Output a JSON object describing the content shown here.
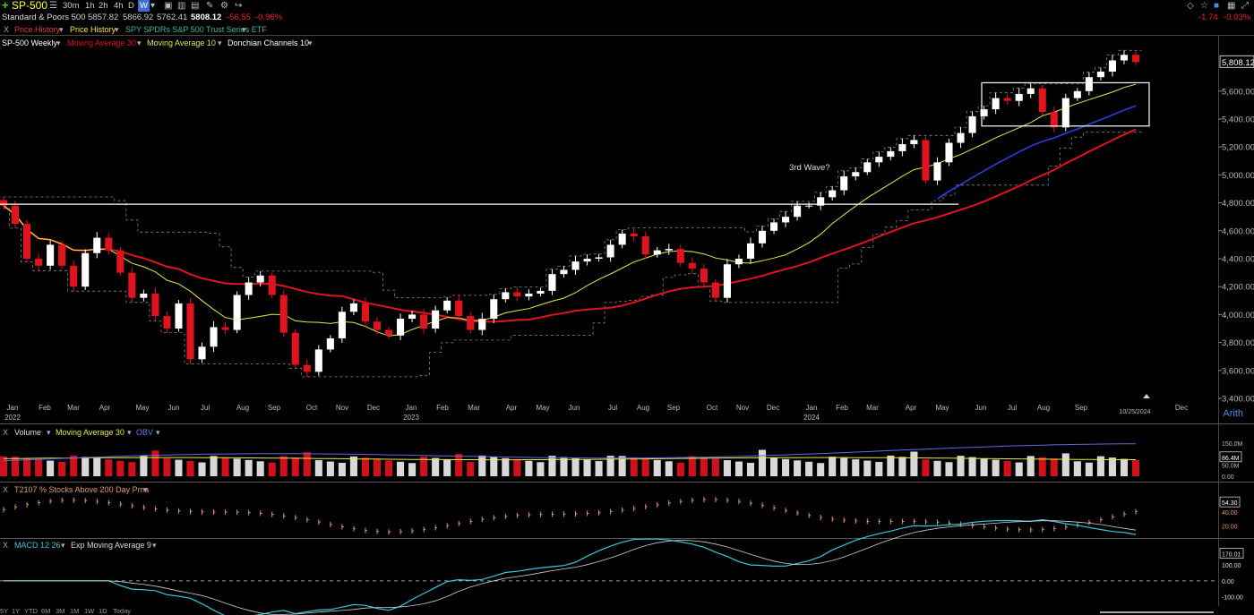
{
  "header": {
    "symbol": "SP-500",
    "timeframes": [
      "30m",
      "1h",
      "2h",
      "4h",
      "D",
      "W"
    ],
    "selected_timeframe": "W",
    "name": "Standard & Poors 500",
    "open": "5857.82",
    "high": "5866.92",
    "low": "5762.41",
    "last": "5808.12",
    "change": "-56.55",
    "change_pct": "-0.96%",
    "right_change": "-1.74",
    "right_change_pct": "-0.03%"
  },
  "compare_bar": {
    "close_label": "X",
    "items": [
      "Price History",
      "Price History",
      "SPY SPDRs S&P 500 Trust Series ETF"
    ]
  },
  "study_bar": {
    "main": "SP-500 Weekly",
    "studies": [
      "Moving Average 30",
      "Moving Average 10",
      "Donchian Channels 10"
    ]
  },
  "colors": {
    "up": "#ffffff",
    "down": "#e0141e",
    "ma30": "#e0141e",
    "ma10": "#e8e84a",
    "blue_ma": "#2b3fe0",
    "donchian": "#888888",
    "accent": "#ffe640"
  },
  "chart_data": [
    {
      "type": "candlestick",
      "title": "SP-500 Weekly",
      "y_ticks": [
        "3,400.00",
        "3,600.00",
        "3,800.00",
        "4,000.00",
        "4,200.00",
        "4,400.00",
        "4,600.00",
        "4,800.00",
        "5,000.00",
        "5,200.00",
        "5,400.00",
        "5,600.00"
      ],
      "ylim": [
        3400,
        5900
      ],
      "last_price_label": "5,808.12",
      "x_ticks": [
        "Jan",
        "Feb",
        "Mar",
        "Apr",
        "May",
        "Jun",
        "Jul",
        "Aug",
        "Sep",
        "Oct",
        "Nov",
        "Dec",
        "Jan",
        "Feb",
        "Mar",
        "Apr",
        "May",
        "Jun",
        "Jul",
        "Aug",
        "Sep",
        "Oct",
        "Nov",
        "Dec",
        "Jan",
        "Feb",
        "Mar",
        "Apr",
        "May",
        "Jun",
        "Jul",
        "Aug",
        "Sep",
        "Dec"
      ],
      "year_labels": [
        "2022",
        "2023",
        "2024"
      ],
      "current_date_label": "10/25/2024",
      "annotation": "3rd Wave?",
      "horizontal_line_level": 4790,
      "box": {
        "from_price": 5350,
        "to_price": 5660
      },
      "closes": [
        4780,
        4650,
        4400,
        4350,
        4500,
        4350,
        4200,
        4440,
        4550,
        4460,
        4300,
        4120,
        4150,
        3990,
        3900,
        4080,
        3680,
        3770,
        3910,
        3890,
        4140,
        4230,
        4280,
        4140,
        3870,
        3640,
        3590,
        3750,
        3830,
        4020,
        4080,
        3950,
        3890,
        3850,
        3970,
        4000,
        3900,
        4030,
        4100,
        3990,
        3890,
        3970,
        4110,
        4160,
        4130,
        4150,
        4170,
        4290,
        4320,
        4380,
        4400,
        4410,
        4500,
        4580,
        4560,
        4430,
        4460,
        4470,
        4370,
        4330,
        4230,
        4120,
        4360,
        4400,
        4510,
        4600,
        4660,
        4700,
        4780,
        4780,
        4840,
        4890,
        4990,
        5020,
        5090,
        5130,
        5170,
        5220,
        5250,
        4960,
        5090,
        5230,
        5300,
        5420,
        5470,
        5550,
        5530,
        5580,
        5620,
        5450,
        5340,
        5550,
        5600,
        5700,
        5740,
        5820,
        5860,
        5808
      ]
    },
    {
      "type": "bar",
      "title": "Volume",
      "studies": [
        "Moving Average 30",
        "OBV"
      ],
      "y_ticks": [
        "150.0M",
        "86.4M",
        "50.0M",
        "0.00"
      ],
      "ylim": [
        0,
        175
      ],
      "last_value_label": "86.4M"
    },
    {
      "type": "line",
      "title": "T2107 % Stocks Above 200 Day Pma",
      "y_ticks": [
        "54.30",
        "40.00",
        "20.00"
      ],
      "last_value_label": "54.30"
    },
    {
      "type": "line",
      "title": "MACD 12 26",
      "studies": [
        "Exp Moving Average 9"
      ],
      "y_ticks": [
        "170.01",
        "100.00",
        "0.00",
        "-100.00"
      ],
      "last_value_label": "170.01"
    }
  ],
  "range_buttons": [
    "5Y",
    "1Y",
    "YTD",
    "6M",
    "3M",
    "1M",
    "1W",
    "1D",
    "Today"
  ],
  "arith_label": "Arith",
  "panel_close": "X"
}
